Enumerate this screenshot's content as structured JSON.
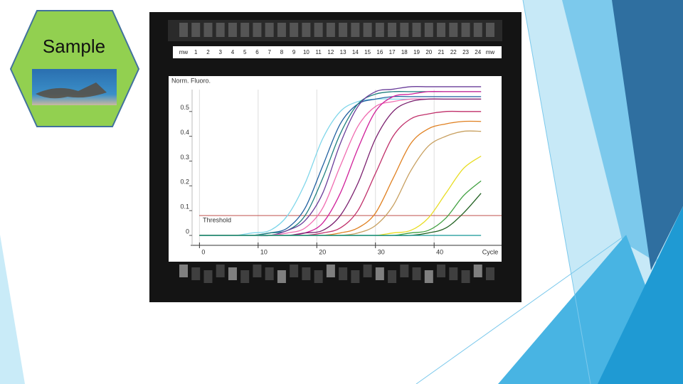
{
  "header": {
    "title": "Sample"
  },
  "gel": {
    "lanes": [
      "mw",
      "1",
      "2",
      "3",
      "4",
      "5",
      "6",
      "7",
      "8",
      "9",
      "10",
      "11",
      "12",
      "13",
      "14",
      "15",
      "16",
      "17",
      "18",
      "19",
      "20",
      "21",
      "22",
      "23",
      "24",
      "mw"
    ]
  },
  "chart_data": {
    "type": "line",
    "y_label": "Norm. Fluoro.",
    "x_label": "Cycle",
    "threshold": {
      "label": "Threshold",
      "value": 0.08,
      "color": "#c0504d"
    },
    "x": [
      0,
      3,
      6,
      9,
      12,
      15,
      18,
      21,
      24,
      27,
      30,
      33,
      36,
      39,
      42,
      45,
      48
    ],
    "xlim": [
      -1.5,
      51.5
    ],
    "xticks": [
      0,
      10,
      20,
      30,
      40
    ],
    "ylim": [
      -0.04,
      0.64
    ],
    "yticks": [
      0,
      0.1,
      0.2,
      0.3,
      0.4,
      0.5
    ],
    "series": [
      {
        "color": "#7fd6ea",
        "values": [
          0,
          0,
          0,
          0.01,
          0.02,
          0.08,
          0.21,
          0.39,
          0.5,
          0.54,
          0.55,
          0.55,
          0.55,
          0.55,
          0.55,
          0.55,
          0.55
        ]
      },
      {
        "color": "#2060a0",
        "values": [
          0,
          0,
          0,
          0,
          0.01,
          0.03,
          0.11,
          0.28,
          0.45,
          0.53,
          0.55,
          0.56,
          0.56,
          0.56,
          0.56,
          0.56,
          0.56
        ]
      },
      {
        "color": "#208080",
        "values": [
          0,
          0,
          0,
          0,
          0.01,
          0.02,
          0.08,
          0.23,
          0.41,
          0.53,
          0.57,
          0.58,
          0.58,
          0.58,
          0.58,
          0.58,
          0.58
        ]
      },
      {
        "color": "#6a3d9a",
        "values": [
          0,
          0,
          0,
          0,
          0,
          0.02,
          0.06,
          0.17,
          0.37,
          0.52,
          0.58,
          0.59,
          0.6,
          0.6,
          0.6,
          0.6,
          0.6
        ]
      },
      {
        "color": "#f06cb0",
        "values": [
          0,
          0,
          0,
          0,
          0,
          0.01,
          0.03,
          0.11,
          0.28,
          0.44,
          0.52,
          0.54,
          0.55,
          0.55,
          0.55,
          0.55,
          0.55
        ]
      },
      {
        "color": "#d0209a",
        "values": [
          0,
          0,
          0,
          0,
          0,
          0,
          0.01,
          0.05,
          0.17,
          0.35,
          0.5,
          0.56,
          0.57,
          0.58,
          0.58,
          0.58,
          0.58
        ]
      },
      {
        "color": "#7a1f6e",
        "values": [
          0,
          0,
          0,
          0,
          0,
          0,
          0.01,
          0.02,
          0.08,
          0.21,
          0.39,
          0.5,
          0.54,
          0.55,
          0.55,
          0.55,
          0.55
        ]
      },
      {
        "color": "#c0306a",
        "values": [
          0,
          0,
          0,
          0,
          0,
          0,
          0,
          0.01,
          0.03,
          0.1,
          0.25,
          0.4,
          0.47,
          0.49,
          0.5,
          0.5,
          0.5
        ]
      },
      {
        "color": "#e08020",
        "values": [
          0,
          0,
          0,
          0,
          0,
          0,
          0,
          0,
          0.01,
          0.03,
          0.09,
          0.23,
          0.37,
          0.43,
          0.45,
          0.46,
          0.46
        ]
      },
      {
        "color": "#c8a060",
        "values": [
          0,
          0,
          0,
          0,
          0,
          0,
          0,
          0,
          0,
          0.01,
          0.04,
          0.12,
          0.26,
          0.36,
          0.4,
          0.42,
          0.42
        ]
      },
      {
        "color": "#e8dc20",
        "values": [
          0,
          0,
          0,
          0,
          0,
          0,
          0,
          0,
          0,
          0,
          0,
          0.01,
          0.02,
          0.07,
          0.17,
          0.27,
          0.32
        ]
      },
      {
        "color": "#40a040",
        "values": [
          0,
          0,
          0,
          0,
          0,
          0,
          0,
          0,
          0,
          0,
          0,
          0,
          0.01,
          0.02,
          0.07,
          0.16,
          0.22
        ]
      },
      {
        "color": "#206020",
        "values": [
          0,
          0,
          0,
          0,
          0,
          0,
          0,
          0,
          0,
          0,
          0,
          0,
          0,
          0.01,
          0.03,
          0.09,
          0.17
        ]
      },
      {
        "color": "#2aa0a0",
        "values": [
          0,
          0,
          0,
          0,
          0,
          0,
          0,
          0,
          0,
          0,
          0,
          0,
          0,
          0,
          0,
          0,
          0
        ]
      }
    ]
  }
}
